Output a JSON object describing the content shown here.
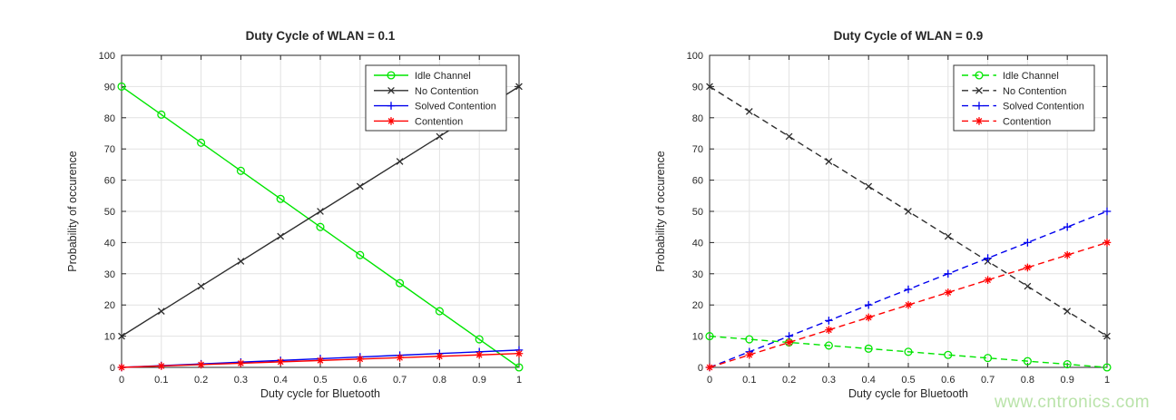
{
  "watermark": {
    "text": "www.cntronics.com",
    "color": "#b9e3a9"
  },
  "style": {
    "axis_color": "#262626",
    "grid_color": "#e2e2e2",
    "background": "#ffffff"
  },
  "chart_data": [
    {
      "type": "line",
      "title": "Duty Cycle of WLAN = 0.1",
      "xlabel": "Duty cycle for Bluetooth",
      "ylabel": "Probability of occurence",
      "xlim": [
        0,
        1
      ],
      "ylim": [
        0,
        100
      ],
      "xticks": [
        0,
        0.1,
        0.2,
        0.3,
        0.4,
        0.5,
        0.6,
        0.7,
        0.8,
        0.9,
        1
      ],
      "xtick_labels": [
        "0",
        "0.1",
        "0.2",
        "0.3",
        "0.4",
        "0.5",
        "0.6",
        "0.7",
        "0.8",
        "0.9",
        "1"
      ],
      "yticks": [
        0,
        10,
        20,
        30,
        40,
        50,
        60,
        70,
        80,
        90,
        100
      ],
      "ytick_labels": [
        "0",
        "10",
        "20",
        "30",
        "40",
        "50",
        "60",
        "70",
        "80",
        "90",
        "100"
      ],
      "grid": true,
      "line_style": "solid",
      "legend_position": "northeast",
      "x": [
        0,
        0.1,
        0.2,
        0.3,
        0.4,
        0.5,
        0.6,
        0.7,
        0.8,
        0.9,
        1
      ],
      "series": [
        {
          "name": "Idle Channel",
          "color": "#00e500",
          "marker": "circle",
          "values": [
            90,
            81,
            72,
            63,
            54,
            45,
            36,
            27,
            18,
            9,
            0
          ]
        },
        {
          "name": "No Contention",
          "color": "#2e2e2e",
          "marker": "x",
          "values": [
            10,
            18,
            26,
            34,
            42,
            50,
            58,
            66,
            74,
            82,
            90
          ]
        },
        {
          "name": "Solved Contention",
          "color": "#0000ee",
          "marker": "plus",
          "values": [
            0,
            0.56,
            1.11,
            1.67,
            2.22,
            2.78,
            3.33,
            3.89,
            4.44,
            5.0,
            5.56
          ]
        },
        {
          "name": "Contention",
          "color": "#ff0000",
          "marker": "asterisk",
          "values": [
            0,
            0.44,
            0.89,
            1.33,
            1.78,
            2.22,
            2.67,
            3.11,
            3.56,
            4.0,
            4.44
          ]
        }
      ]
    },
    {
      "type": "line",
      "title": "Duty Cycle of WLAN = 0.9",
      "xlabel": "Duty cycle for Bluetooth",
      "ylabel": "Probability of occurence",
      "xlim": [
        0,
        1
      ],
      "ylim": [
        0,
        100
      ],
      "xticks": [
        0,
        0.1,
        0.2,
        0.3,
        0.4,
        0.5,
        0.6,
        0.7,
        0.8,
        0.9,
        1
      ],
      "xtick_labels": [
        "0",
        "0.1",
        "0.2",
        "0.3",
        "0.4",
        "0.5",
        "0.6",
        "0.7",
        "0.8",
        "0.9",
        "1"
      ],
      "yticks": [
        0,
        10,
        20,
        30,
        40,
        50,
        60,
        70,
        80,
        90,
        100
      ],
      "ytick_labels": [
        "0",
        "10",
        "20",
        "30",
        "40",
        "50",
        "60",
        "70",
        "80",
        "90",
        "100"
      ],
      "grid": true,
      "line_style": "dashed",
      "legend_position": "northeast",
      "x": [
        0,
        0.1,
        0.2,
        0.3,
        0.4,
        0.5,
        0.6,
        0.7,
        0.8,
        0.9,
        1
      ],
      "series": [
        {
          "name": "Idle Channel",
          "color": "#00e500",
          "marker": "circle",
          "values": [
            10,
            9,
            8,
            7,
            6,
            5,
            4,
            3,
            2,
            1,
            0
          ]
        },
        {
          "name": "No Contention",
          "color": "#2e2e2e",
          "marker": "x",
          "values": [
            90,
            82,
            74,
            66,
            58,
            50,
            42,
            34,
            26,
            18,
            10
          ]
        },
        {
          "name": "Solved Contention",
          "color": "#0000ee",
          "marker": "plus",
          "values": [
            0,
            5,
            10,
            15,
            20,
            25,
            30,
            35,
            40,
            45,
            50
          ]
        },
        {
          "name": "Contention",
          "color": "#ff0000",
          "marker": "asterisk",
          "values": [
            0,
            4,
            8,
            12,
            16,
            20,
            24,
            28,
            32,
            36,
            40
          ]
        }
      ]
    }
  ]
}
